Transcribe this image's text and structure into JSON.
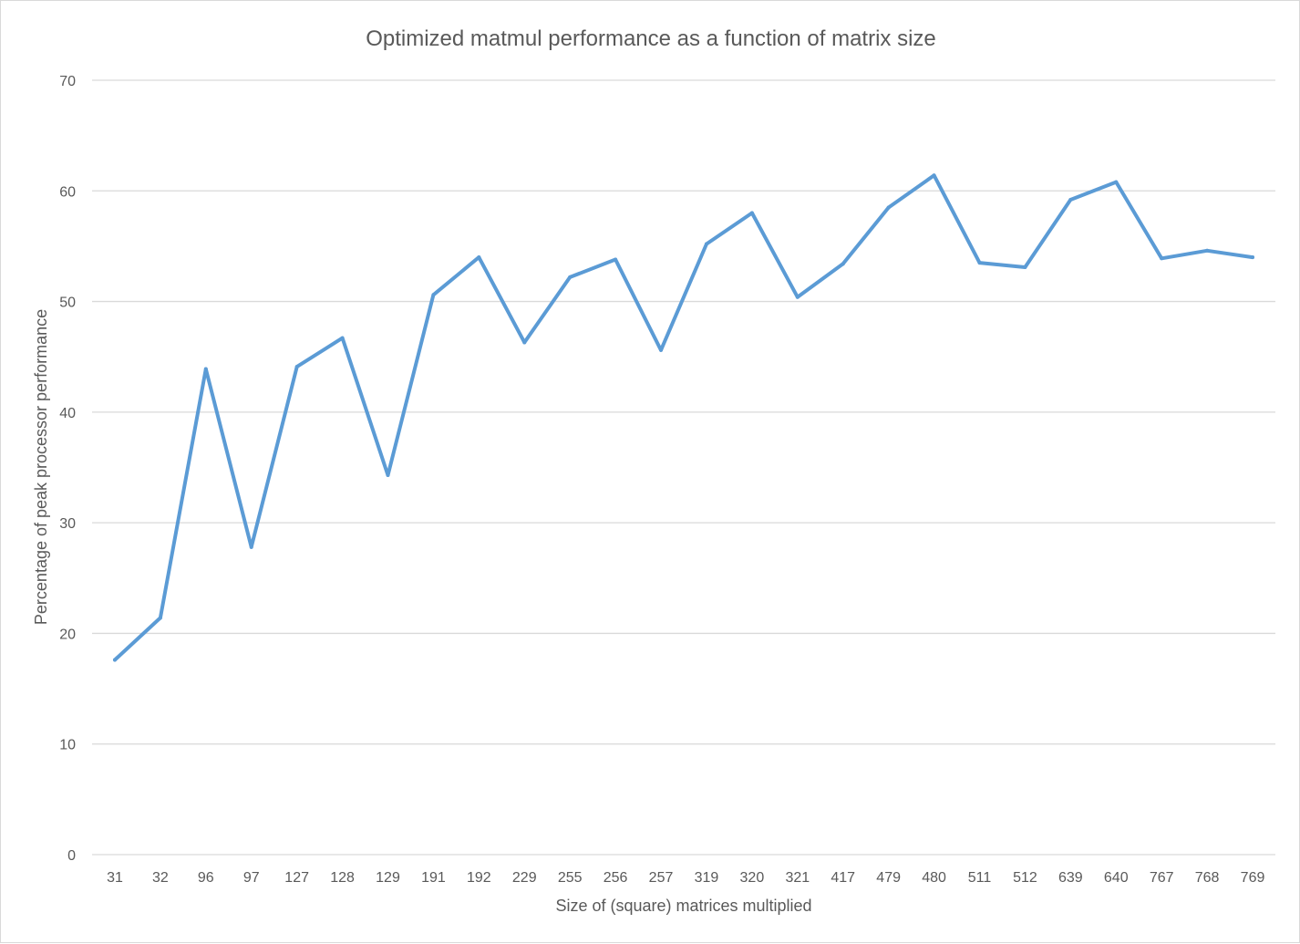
{
  "chart_data": {
    "type": "line",
    "title": "Optimized matmul performance  as a function of matrix size",
    "xlabel": "Size of (square) matrices multiplied",
    "ylabel": "Percentage of peak processor performance",
    "categories": [
      "31",
      "32",
      "96",
      "97",
      "127",
      "128",
      "129",
      "191",
      "192",
      "229",
      "255",
      "256",
      "257",
      "319",
      "320",
      "321",
      "417",
      "479",
      "480",
      "511",
      "512",
      "639",
      "640",
      "767",
      "768",
      "769"
    ],
    "series": [
      {
        "values": [
          17.6,
          21.4,
          43.9,
          27.8,
          44.1,
          46.7,
          34.3,
          50.6,
          54.0,
          46.3,
          52.2,
          53.8,
          45.6,
          55.2,
          58.0,
          50.4,
          53.4,
          58.5,
          61.4,
          53.5,
          53.1,
          59.2,
          60.8,
          53.9,
          54.6,
          54.0
        ],
        "color": "#5b9bd5"
      }
    ],
    "ylim": [
      0,
      70
    ],
    "yticks": [
      0,
      10,
      20,
      30,
      40,
      50,
      60,
      70
    ],
    "grid": "horizontal",
    "legend": "none"
  }
}
